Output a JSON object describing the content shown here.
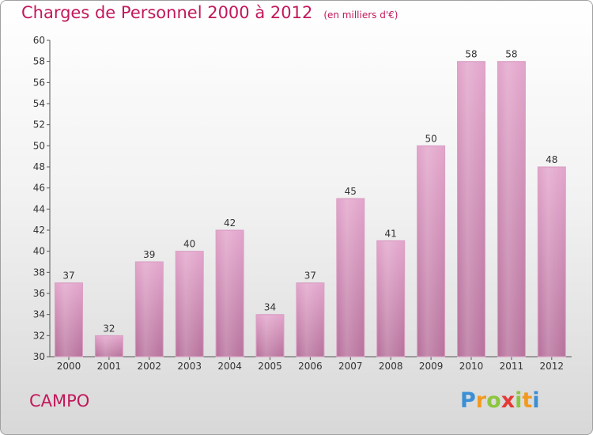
{
  "header": {
    "title": "Charges de Personnel 2000 à 2012",
    "subtitle": "(en milliers d'€)"
  },
  "footer": {
    "commune": "CAMPO",
    "logo_text": "Proxiti"
  },
  "colors": {
    "bar_top": "#e3a6cc",
    "bar_bottom": "#b8739d",
    "title": "#c2185b"
  },
  "chart_data": {
    "type": "bar",
    "title": "Charges de Personnel 2000 à 2012",
    "subtitle": "(en milliers d'€)",
    "categories": [
      "2000",
      "2001",
      "2002",
      "2003",
      "2004",
      "2005",
      "2006",
      "2007",
      "2008",
      "2009",
      "2010",
      "2011",
      "2012"
    ],
    "values": [
      37,
      32,
      39,
      40,
      42,
      34,
      37,
      45,
      41,
      50,
      58,
      58,
      48
    ],
    "ylim": [
      30,
      60
    ],
    "yticks": [
      30,
      32,
      34,
      36,
      38,
      40,
      42,
      44,
      46,
      48,
      50,
      52,
      54,
      56,
      58,
      60
    ],
    "xlabel": "",
    "ylabel": "",
    "grid": false,
    "data_labels": true
  }
}
